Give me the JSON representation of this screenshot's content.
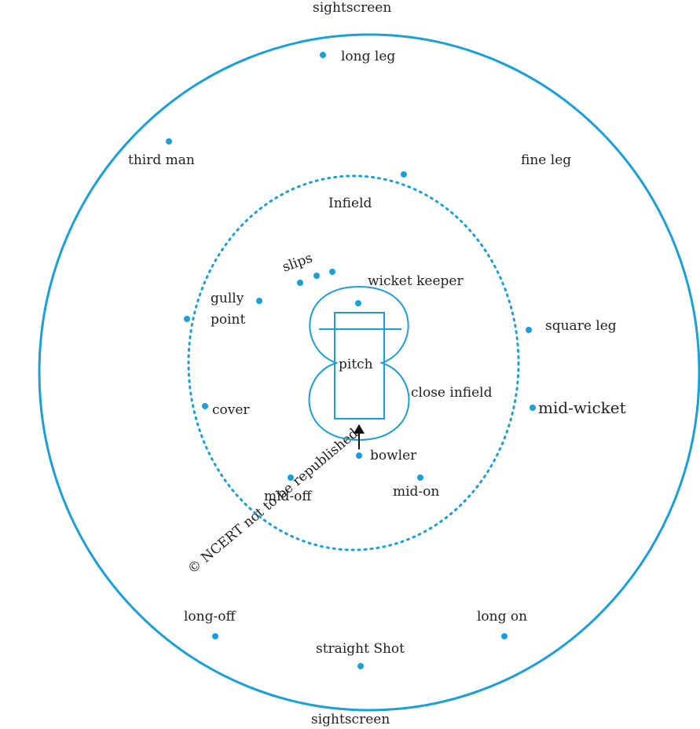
{
  "colors": {
    "line": "#1aa0d8",
    "text": "#222222",
    "arrow": "#111111",
    "watermark": "#e8e8e8"
  },
  "watermark_text": "© NCERT not to be republished",
  "labels": {
    "sightscreen_top": "sightscreen",
    "sightscreen_bottom": "sightscreen",
    "long_leg": "long leg",
    "third_man": "third man",
    "fine_leg": "fine leg",
    "infield": "Infield",
    "slips": "slips",
    "wicket_keeper": "wicket keeper",
    "gully": "gully",
    "point": "point",
    "square_leg": "square leg",
    "pitch": "pitch",
    "close_infield": "close infield",
    "cover": "cover",
    "mid_wicket": "mid-wicket",
    "bowler": "bowler",
    "mid_off": "mid-off",
    "mid_on": "mid-on",
    "long_off": "long-off",
    "long_on": "long on",
    "straight_shot": "straight Shot"
  }
}
